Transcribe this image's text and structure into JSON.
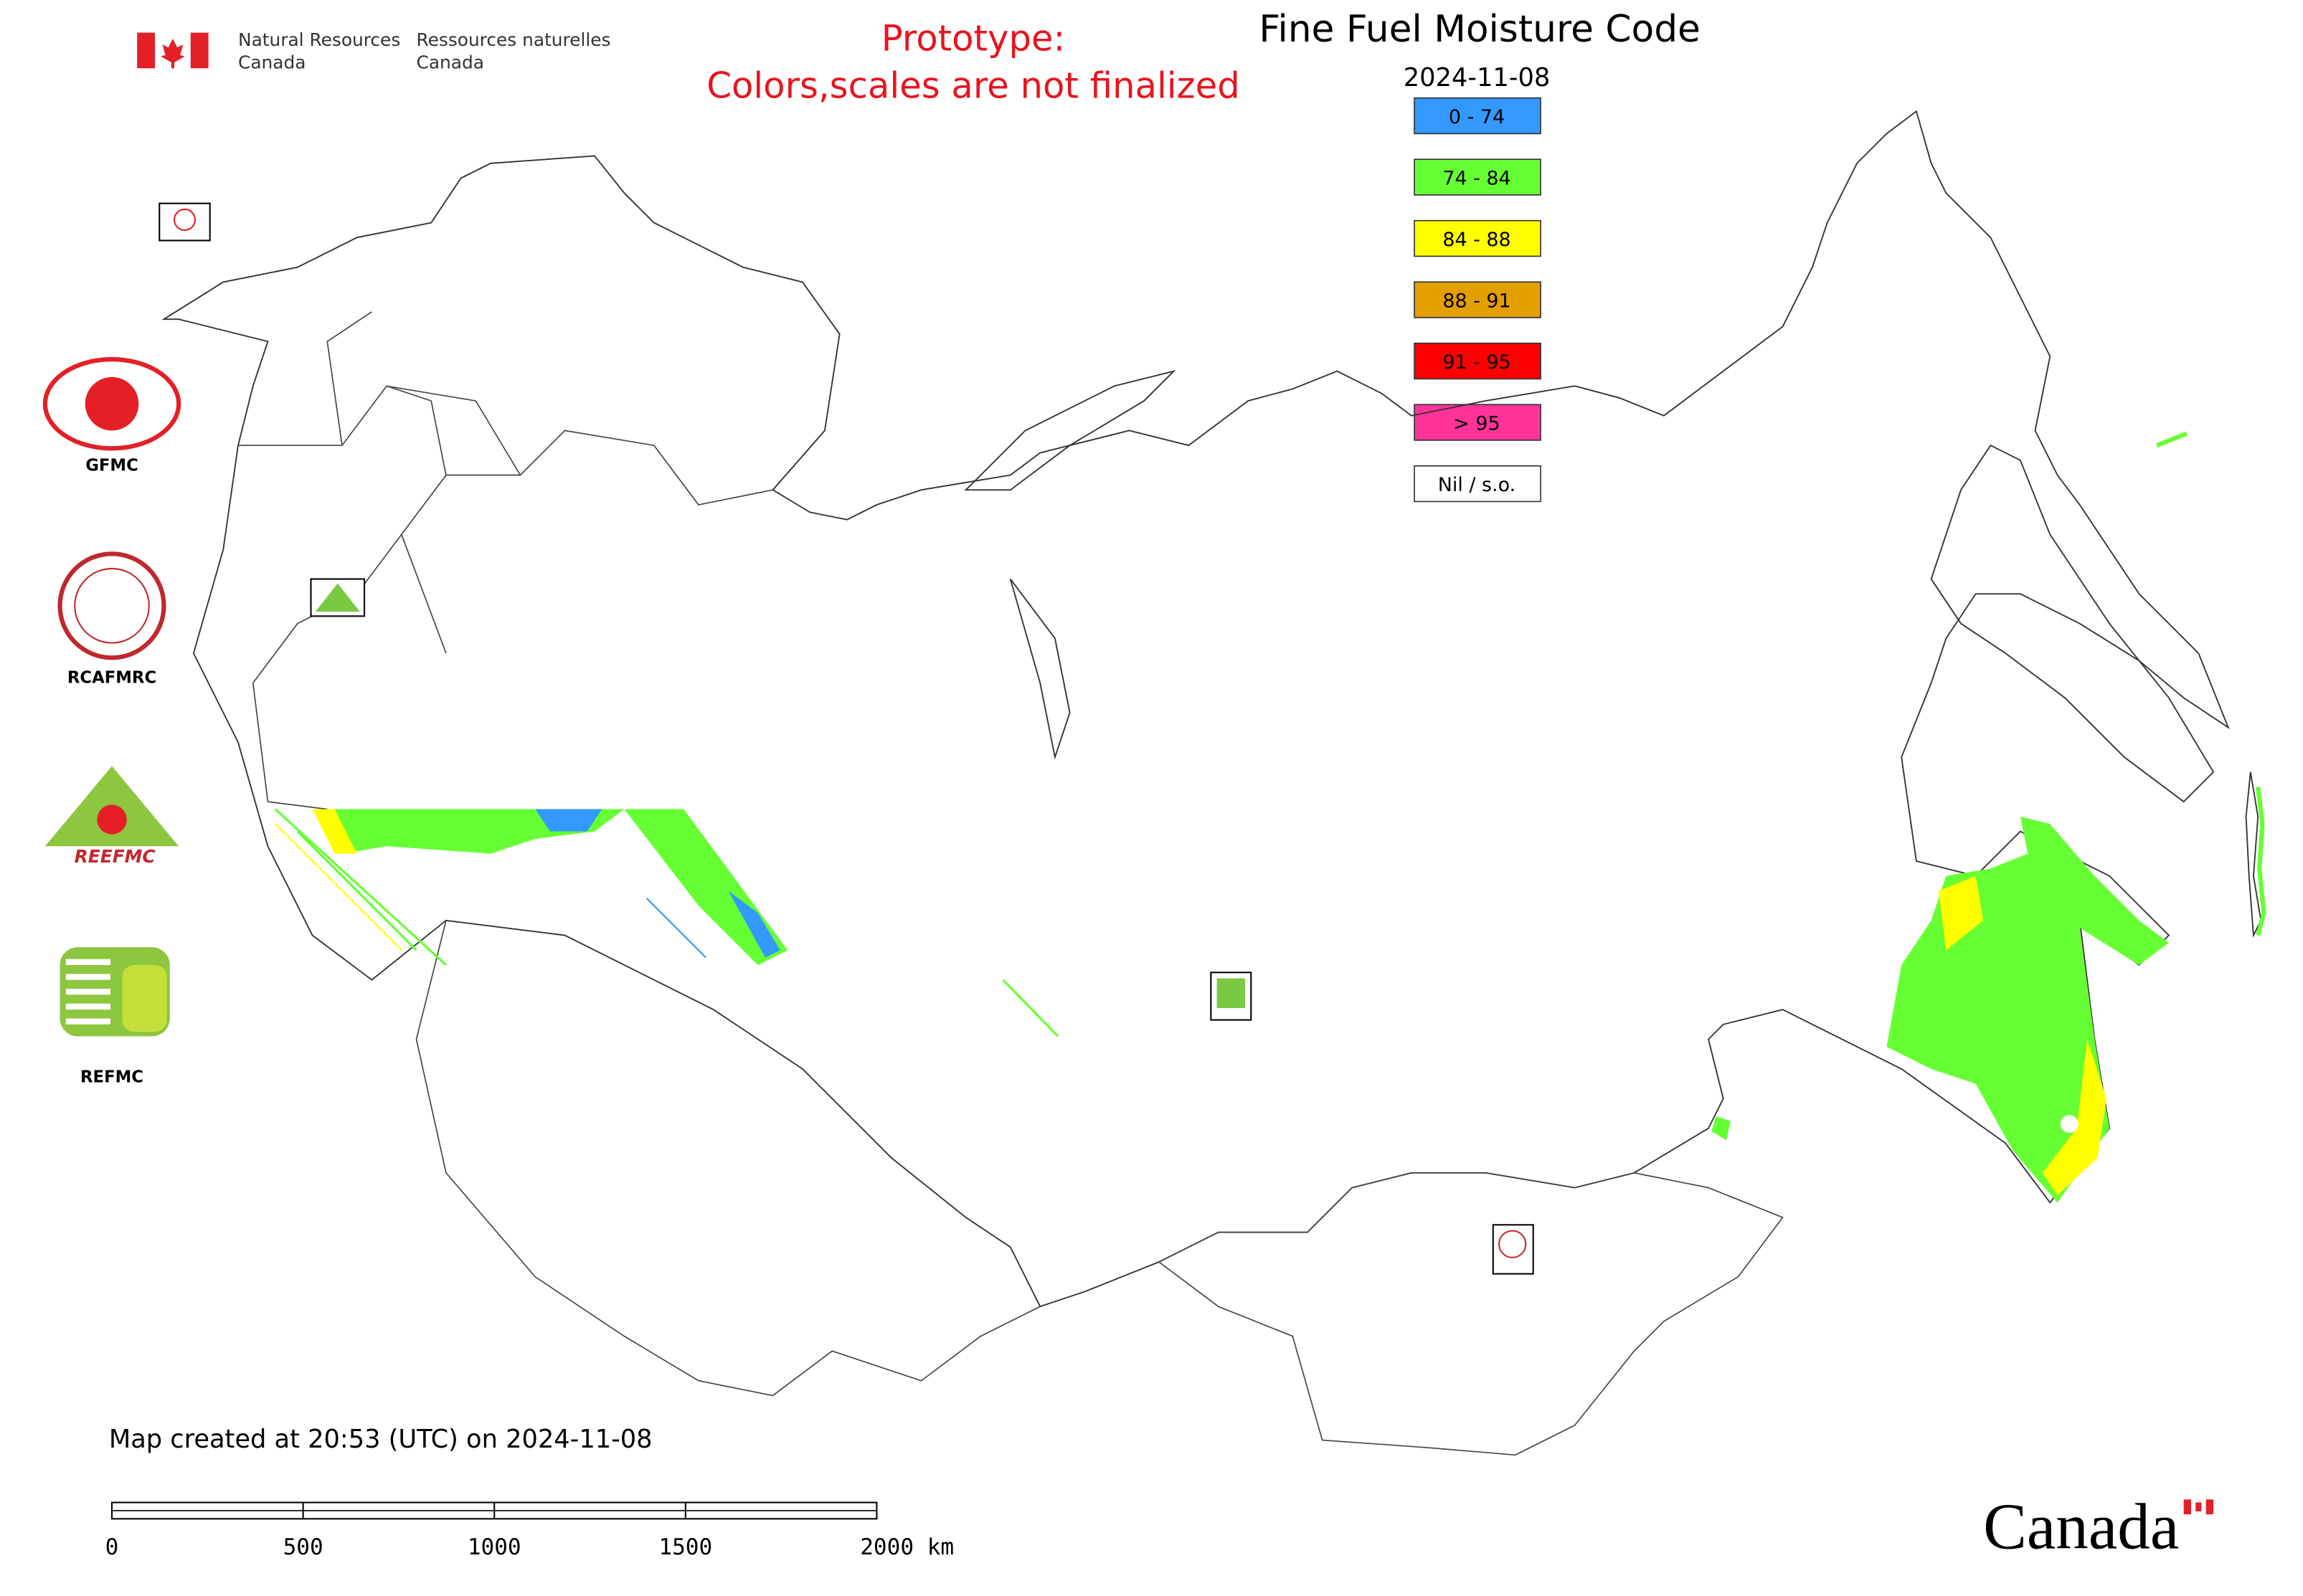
{
  "header": {
    "org_en": [
      "Natural Resources",
      "Canada"
    ],
    "org_fr": [
      "Ressources naturelles",
      "Canada"
    ]
  },
  "notice": [
    "Prototype:",
    "Colors,scales are not finalized"
  ],
  "title": "Fine Fuel Moisture Code",
  "date": "2024-11-08",
  "legend": [
    {
      "label": "0 - 74",
      "color": "#3399ff"
    },
    {
      "label": "74 - 84",
      "color": "#66ff33"
    },
    {
      "label": "84 - 88",
      "color": "#ffff00"
    },
    {
      "label": "88 - 91",
      "color": "#e39e00"
    },
    {
      "label": "91 - 95",
      "color": "#ff0000"
    },
    {
      "label": "> 95",
      "color": "#ff3399"
    },
    {
      "label": "Nil / s.o.",
      "color": "#ffffff"
    }
  ],
  "logos": [
    "GFMC",
    "RCAFMRC",
    "REEFMC",
    "REFMC"
  ],
  "footer": "Map created at 20:53 (UTC) on 2024-11-08",
  "scale_bar": [
    "0",
    "500",
    "1000",
    "1500",
    "2000 km"
  ],
  "wordmark": "Canada"
}
